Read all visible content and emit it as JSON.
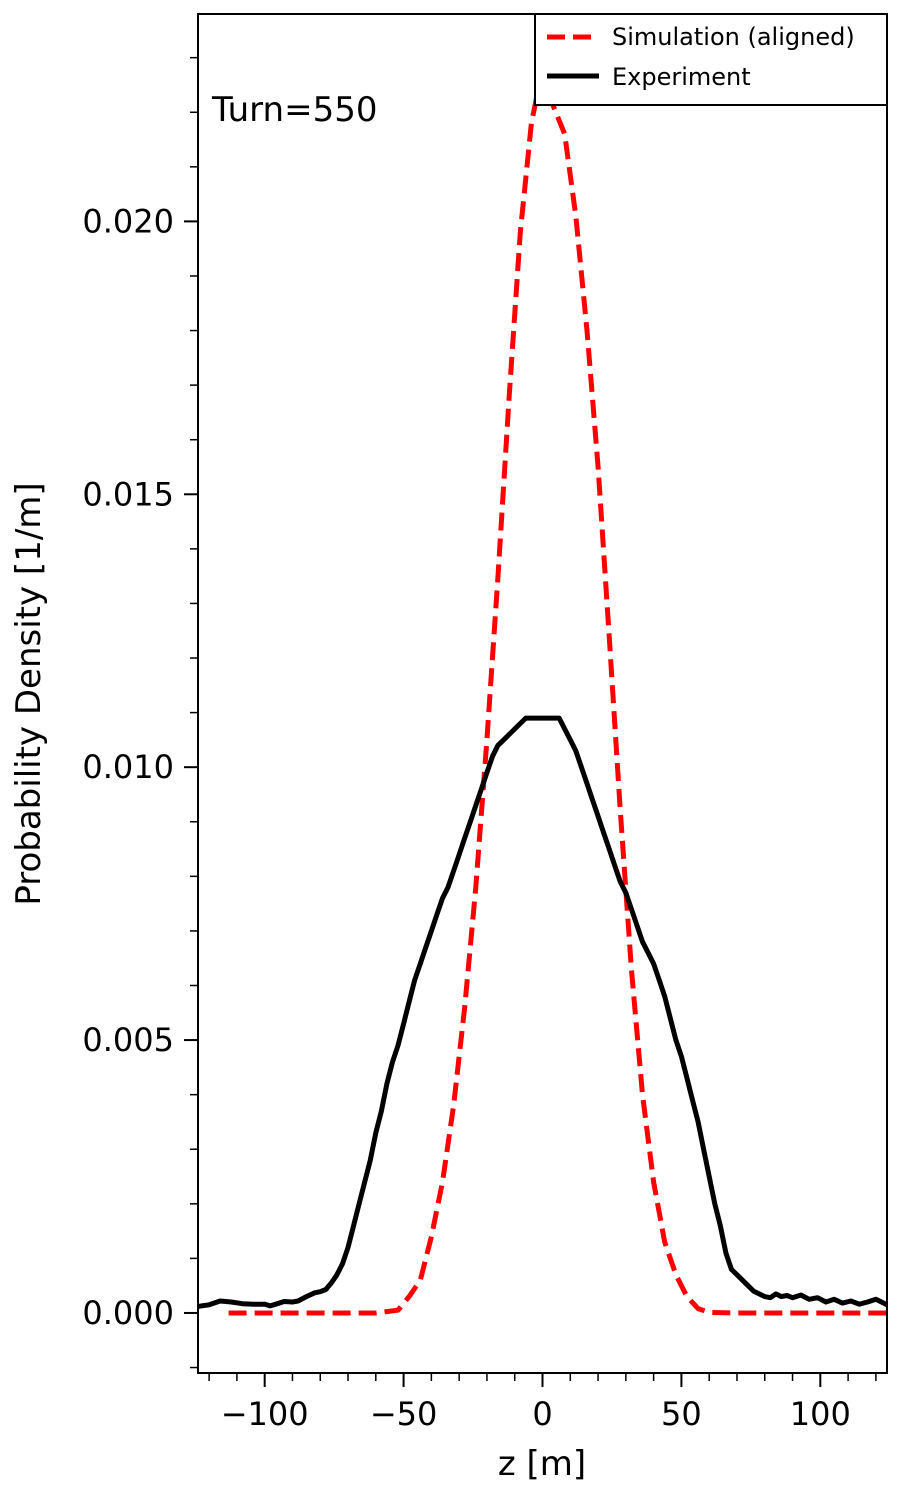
{
  "chart_data": {
    "type": "line",
    "annotation": "Turn=550",
    "xlabel": "z [m]",
    "ylabel": "Probability Density [1/m]",
    "xlim": [
      -124,
      124
    ],
    "ylim": [
      -0.0011,
      0.0238
    ],
    "xticks": [
      -100,
      -50,
      0,
      50,
      100
    ],
    "xtick_labels": [
      "−100",
      "−50",
      "0",
      "50",
      "100"
    ],
    "yticks": [
      0.0,
      0.005,
      0.01,
      0.015,
      0.02
    ],
    "ytick_labels": [
      "0.000",
      "0.005",
      "0.010",
      "0.015",
      "0.020"
    ],
    "legend_position": "top-right",
    "grid": false,
    "series": [
      {
        "name": "Simulation (aligned)",
        "color": "#ff0000",
        "style": "dashed",
        "x": [
          -113,
          -100,
          -90,
          -80,
          -70,
          -60,
          -52,
          -48,
          -44,
          -40,
          -36,
          -32,
          -28,
          -24,
          -20,
          -16,
          -12,
          -8,
          -4,
          -2,
          0,
          2,
          4,
          8,
          12,
          16,
          20,
          24,
          28,
          32,
          36,
          40,
          44,
          48,
          52,
          56,
          60,
          70,
          80,
          90,
          100,
          113,
          124
        ],
        "y": [
          0.0,
          0.0,
          0.0,
          0.0,
          0.0,
          0.0,
          5e-05,
          0.0003,
          0.0006,
          0.0014,
          0.0024,
          0.0038,
          0.0056,
          0.0078,
          0.0105,
          0.0135,
          0.0168,
          0.0198,
          0.0218,
          0.0223,
          0.0226,
          0.0224,
          0.0221,
          0.0216,
          0.0201,
          0.018,
          0.0155,
          0.0124,
          0.0092,
          0.0063,
          0.004,
          0.0024,
          0.0013,
          0.0007,
          0.0003,
          8e-05,
          1e-05,
          0.0,
          0.0,
          0.0,
          0.0,
          0.0,
          0.0
        ]
      },
      {
        "name": "Experiment",
        "color": "#000000",
        "style": "solid",
        "x": [
          -124,
          -120,
          -116,
          -112,
          -108,
          -104,
          -100,
          -98,
          -96,
          -93,
          -90,
          -88,
          -85,
          -82,
          -80,
          -78,
          -76,
          -74,
          -72,
          -70,
          -68,
          -66,
          -64,
          -62,
          -60,
          -58,
          -56,
          -54,
          -52,
          -50,
          -48,
          -46,
          -44,
          -42,
          -40,
          -38,
          -36,
          -34,
          -32,
          -30,
          -28,
          -26,
          -24,
          -22,
          -20,
          -18,
          -16,
          -14,
          -12,
          -10,
          -8,
          -6,
          -4,
          -2,
          0,
          2,
          4,
          6,
          8,
          10,
          12,
          14,
          16,
          18,
          20,
          22,
          24,
          26,
          28,
          30,
          32,
          34,
          36,
          38,
          40,
          42,
          44,
          46,
          48,
          50,
          52,
          54,
          56,
          58,
          60,
          62,
          64,
          66,
          68,
          70,
          72,
          74,
          76,
          78,
          80,
          82,
          84,
          86,
          88,
          90,
          93,
          96,
          99,
          102,
          105,
          108,
          111,
          114,
          117,
          120,
          124
        ],
        "y": [
          0.00012,
          0.00015,
          0.00022,
          0.0002,
          0.00017,
          0.00016,
          0.00016,
          0.00013,
          0.00016,
          0.00021,
          0.0002,
          0.00022,
          0.0003,
          0.00037,
          0.00039,
          0.00043,
          0.00055,
          0.0007,
          0.0009,
          0.0012,
          0.0016,
          0.002,
          0.0024,
          0.0028,
          0.0033,
          0.0037,
          0.0042,
          0.0046,
          0.0049,
          0.0053,
          0.0057,
          0.0061,
          0.0064,
          0.0067,
          0.007,
          0.0073,
          0.0076,
          0.0078,
          0.0081,
          0.0084,
          0.0087,
          0.009,
          0.0093,
          0.0096,
          0.0099,
          0.0102,
          0.0104,
          0.0105,
          0.0106,
          0.0107,
          0.0108,
          0.0109,
          0.0109,
          0.0109,
          0.0109,
          0.0109,
          0.0109,
          0.0109,
          0.0107,
          0.0105,
          0.0103,
          0.01,
          0.0097,
          0.0094,
          0.0091,
          0.0088,
          0.0085,
          0.0082,
          0.0079,
          0.0077,
          0.0074,
          0.0071,
          0.0068,
          0.0066,
          0.0064,
          0.0061,
          0.0058,
          0.0054,
          0.005,
          0.0047,
          0.0043,
          0.0039,
          0.0035,
          0.003,
          0.0025,
          0.002,
          0.0016,
          0.0011,
          0.0008,
          0.0007,
          0.0006,
          0.0005,
          0.0004,
          0.00035,
          0.0003,
          0.00028,
          0.00035,
          0.0003,
          0.00032,
          0.00028,
          0.00033,
          0.00025,
          0.00028,
          0.0002,
          0.00025,
          0.00018,
          0.00022,
          0.00016,
          0.0002,
          0.00025,
          0.00015
        ]
      }
    ]
  }
}
